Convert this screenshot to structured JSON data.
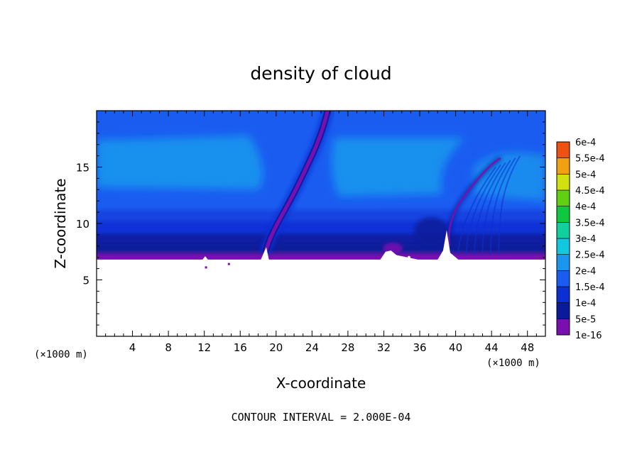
{
  "chart_data": {
    "type": "heatmap",
    "title": "density of cloud",
    "xlabel": "X-coordinate",
    "ylabel": "Z-coordinate",
    "x_unit_left": "(×1000 m)",
    "x_unit_right": "(×1000 m)",
    "xlim": [
      0,
      50
    ],
    "ylim": [
      0,
      20
    ],
    "x_ticks": [
      4,
      8,
      12,
      16,
      20,
      24,
      28,
      32,
      36,
      40,
      44,
      48
    ],
    "y_ticks": [
      5,
      10,
      15
    ],
    "footer": "CONTOUR INTERVAL = 2.000E-04",
    "colorbar": {
      "levels": [
        "1e-16",
        "5e-5",
        "1e-4",
        "1.5e-4",
        "2e-4",
        "2.5e-4",
        "3e-4",
        "3.5e-4",
        "4e-4",
        "4.5e-4",
        "5e-4",
        "5.5e-4",
        "6e-4"
      ],
      "colors": [
        "#7a0fb0",
        "#0a1a9a",
        "#0c2fd4",
        "#1a5cf0",
        "#1a96ee",
        "#10c8e0",
        "#10d0a0",
        "#10c840",
        "#60d010",
        "#d0e010",
        "#f0a010",
        "#f05010",
        "#f08080"
      ]
    },
    "field_colors": {
      "base": "#1a5cf0",
      "light": "#1a96ee",
      "mid": "#0c2fd4",
      "dark": "#0a1a9a",
      "trace": "#7a0fb0"
    }
  }
}
